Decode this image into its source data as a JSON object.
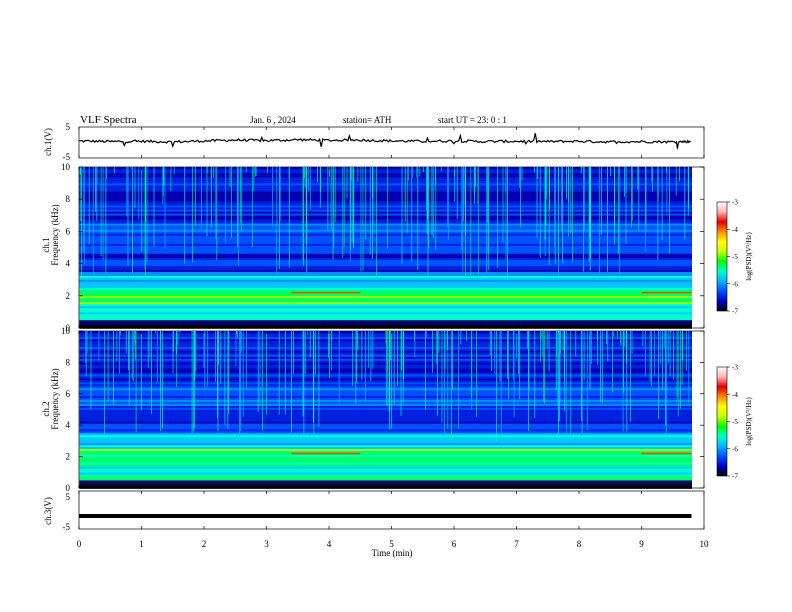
{
  "header": {
    "title": "VLF  Spectra",
    "date": "Jan.  6   , 2024",
    "station": "station= ATH",
    "start": "start  UT  =    23: 0   : 1"
  },
  "colorbar": {
    "label": "log(PSD)(V²/Hz)",
    "ticks": [
      "-3",
      "-4",
      "-5",
      "-6",
      "-7"
    ],
    "colors": [
      "#000000",
      "#0000c8",
      "#0050ff",
      "#00b4ff",
      "#00ffc8",
      "#00ff00",
      "#c8ff00",
      "#ffff00",
      "#ff8c00",
      "#e00000",
      "#ffb4b4",
      "#ffffff"
    ]
  },
  "chart_data": [
    {
      "type": "line",
      "name": "ch1-waveform",
      "ylabel": "ch.1(V)",
      "ylim": [
        -5,
        5
      ],
      "yticks": [
        "5",
        "-5"
      ],
      "xlim": [
        0,
        10
      ],
      "x": [
        0,
        0.5,
        1,
        1.5,
        2,
        2.5,
        3,
        3.5,
        4,
        4.5,
        5,
        5.5,
        6,
        6.5,
        7,
        7.5,
        8,
        8.5,
        9,
        9.5,
        9.8
      ],
      "y": [
        0.5,
        0.3,
        0.4,
        0.2,
        0.5,
        0.8,
        0.6,
        0.9,
        0.7,
        0.8,
        0.5,
        0.4,
        0.5,
        0.3,
        0.4,
        0.3,
        0.4,
        0.2,
        0.3,
        0.2,
        0.3
      ]
    },
    {
      "type": "heatmap",
      "name": "ch1-spectrogram",
      "ylabel": "ch.1\nFrequency  (kHz)",
      "xlim": [
        0,
        10
      ],
      "ylim": [
        0,
        10
      ],
      "yticks": [
        "10",
        "8",
        "6",
        "4",
        "2",
        "0"
      ]
    },
    {
      "type": "heatmap",
      "name": "ch2-spectrogram",
      "ylabel": "ch.2\nFrequency  (kHz)",
      "xlim": [
        0,
        10
      ],
      "ylim": [
        0,
        10
      ],
      "yticks": [
        "10",
        "8",
        "6",
        "4",
        "2",
        "0"
      ]
    },
    {
      "type": "line",
      "name": "ch3-waveform",
      "ylabel": "ch.3(V)",
      "ylim": [
        -5,
        5
      ],
      "yticks": [
        "5",
        "-5"
      ],
      "xlim": [
        0,
        10
      ],
      "x": [
        0,
        9.8
      ],
      "y": [
        -2,
        -2
      ],
      "xlabel": "Time  (min)",
      "xticks": [
        "0",
        "1",
        "2",
        "3",
        "4",
        "5",
        "6",
        "7",
        "8",
        "9",
        "10"
      ]
    }
  ]
}
